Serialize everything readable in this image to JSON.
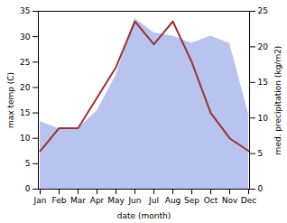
{
  "chart_data": {
    "type": "line",
    "categories": [
      "Jan",
      "Feb",
      "Mar",
      "Apr",
      "May",
      "Jun",
      "Jul",
      "Aug",
      "Sep",
      "Oct",
      "Nov",
      "Dec"
    ],
    "xlabel": "date (month)",
    "ylabel": "max temp (C)",
    "y2label": "med. precipitation (kg/m2)",
    "ylim": [
      0,
      35
    ],
    "yticks": [
      0,
      5,
      10,
      15,
      20,
      25,
      30,
      35
    ],
    "y2lim": [
      0,
      25
    ],
    "y2ticks": [
      0,
      5,
      10,
      15,
      20,
      25
    ],
    "series": [
      {
        "type": "area",
        "axis": "y2",
        "color": "#b8c4ee",
        "values": [
          9.5,
          8.5,
          8.5,
          11.0,
          16.0,
          24.0,
          22.0,
          21.5,
          20.5,
          21.5,
          20.5,
          10.5
        ]
      },
      {
        "color": "#993333",
        "values": [
          7.5,
          12.0,
          12.0,
          18.0,
          24.0,
          33.0,
          28.5,
          33.0,
          25.0,
          15.0,
          10.0,
          7.5
        ]
      }
    ]
  }
}
